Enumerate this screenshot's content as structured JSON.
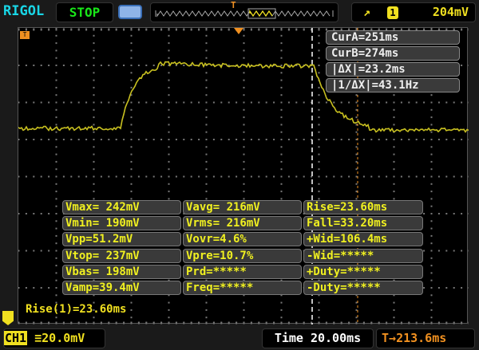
{
  "header": {
    "brand": "RIGOL",
    "run_state": "STOP",
    "trigger_edge_icon": "rising-edge-icon",
    "trigger_channel": "1",
    "trigger_level": "204mV",
    "memory_marker": "T"
  },
  "cursors": {
    "cur_a": "CurA=251ms",
    "cur_b": "CurB=274ms",
    "delta_x": "|ΔX|=23.2ms",
    "inv_delta_x": "|1/ΔX|=43.1Hz"
  },
  "measurements": [
    [
      "Vmax= 242mV",
      "Vavg= 216mV",
      "Rise=23.60ms"
    ],
    [
      "Vmin= 190mV",
      "Vrms= 216mV",
      "Fall=33.20ms"
    ],
    [
      "Vpp=51.2mV",
      "Vovr=4.6%",
      "+Wid=106.4ms"
    ],
    [
      "Vtop= 237mV",
      "Vpre=10.7%",
      "-Wid=*****"
    ],
    [
      "Vbas= 198mV",
      "Prd=*****",
      "+Duty=*****"
    ],
    [
      "Vamp=39.4mV",
      "Freq=*****",
      "-Duty=*****"
    ]
  ],
  "rise_readout": "Rise(1)=23.60ms",
  "footer": {
    "channel": "CH1",
    "volts_per_div": "20.0mV",
    "timebase": "Time 20.00ms",
    "trigger_offset": "213.6ms",
    "trigger_offset_icon": "T→"
  },
  "colors": {
    "trace": "#c8c020",
    "ch1": "#f0e020",
    "trigger": "#f09020",
    "brand": "#19d6e6",
    "run": "#19e619"
  }
}
